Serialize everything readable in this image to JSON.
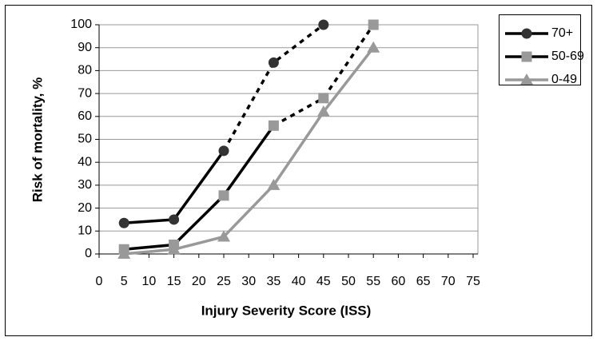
{
  "chart_data": {
    "type": "line",
    "xlabel": "Injury Severity Score (ISS)",
    "ylabel": "Risk of mortality, %",
    "x": [
      5,
      15,
      25,
      35,
      45,
      55
    ],
    "series": [
      {
        "name": "70+",
        "color": "#000000",
        "marker_color": "#333333",
        "marker": "circle",
        "dash_start": 2,
        "values": [
          13.5,
          15,
          45,
          83.5,
          100,
          null
        ]
      },
      {
        "name": "50-69",
        "color": "#000000",
        "marker_color": "#999999",
        "marker": "square",
        "dash_start": 3,
        "values": [
          2,
          4,
          25.5,
          56,
          68,
          100
        ]
      },
      {
        "name": "0-49",
        "color": "#999999",
        "marker_color": "#999999",
        "marker": "triangle",
        "values": [
          0,
          2,
          7.5,
          30,
          62,
          90
        ]
      }
    ],
    "xlim": [
      0,
      75
    ],
    "xticks": [
      0,
      5,
      10,
      15,
      20,
      25,
      30,
      35,
      40,
      45,
      50,
      55,
      60,
      65,
      70,
      75
    ],
    "ylim": [
      0,
      100
    ],
    "yticks": [
      0,
      10,
      20,
      30,
      40,
      50,
      60,
      70,
      80,
      90,
      100
    ],
    "grid": true,
    "legend": "upper right"
  }
}
